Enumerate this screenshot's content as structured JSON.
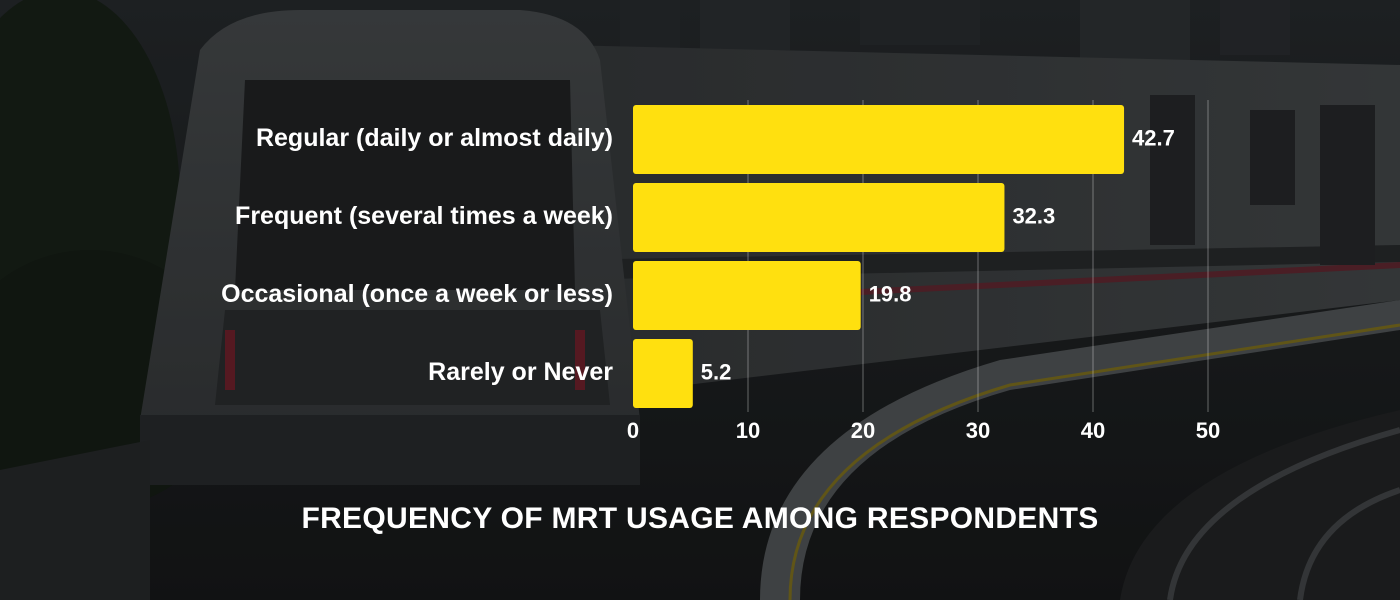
{
  "colors": {
    "bar": "#FFE00F",
    "text": "#FFFFFF",
    "background": "#1a1c1d"
  },
  "chart_data": {
    "type": "bar",
    "orientation": "horizontal",
    "title": "FREQUENCY OF MRT USAGE AMONG RESPONDENTS",
    "categories": [
      "Regular (daily or almost daily)",
      "Frequent (several times a week)",
      "Occasional (once a week or less)",
      "Rarely or Never"
    ],
    "values": [
      42.7,
      32.3,
      19.8,
      5.2
    ],
    "value_labels": [
      "42.7",
      "32.3",
      "19.8",
      "5.2"
    ],
    "xlim": [
      0,
      50
    ],
    "xticks": [
      0,
      10,
      20,
      30,
      40,
      50
    ],
    "xtick_labels": [
      "0",
      "10",
      "20",
      "30",
      "40",
      "50"
    ],
    "grid": true,
    "xlabel": "",
    "ylabel": ""
  }
}
